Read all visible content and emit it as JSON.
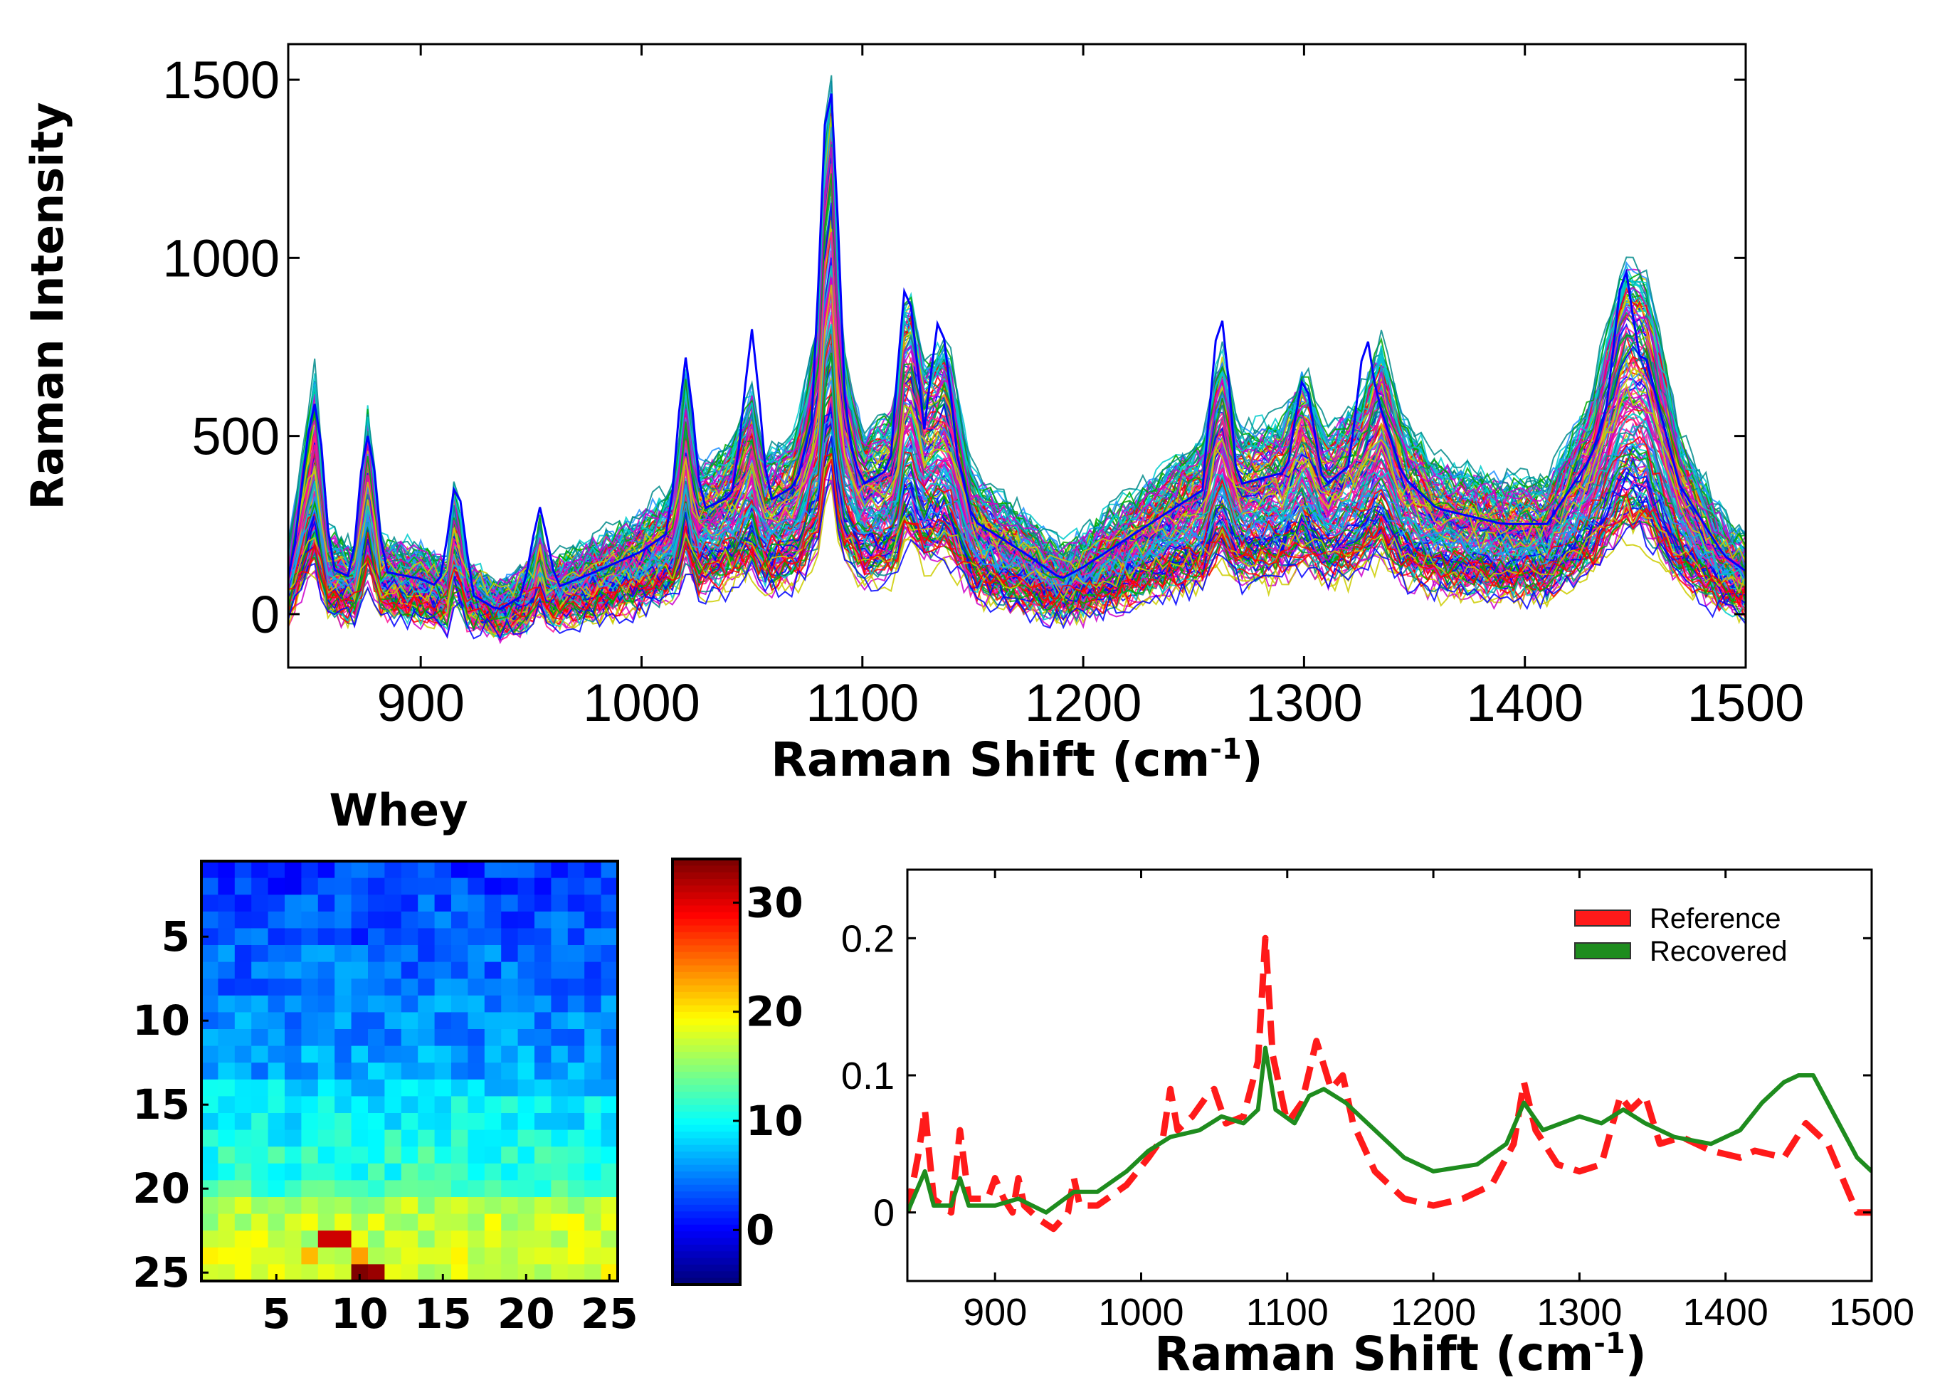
{
  "chart_data": [
    {
      "type": "line",
      "xlabel": "Raman Shift (cm-1)",
      "ylabel": "Raman Intensity",
      "xlim": [
        840,
        1500
      ],
      "ylim": [
        -150,
        1600
      ],
      "xticks": [
        900,
        1000,
        1100,
        1200,
        1300,
        1400,
        1500
      ],
      "yticks": [
        0,
        500,
        1000,
        1500
      ],
      "grid": false,
      "series_count_estimate": 150,
      "series_colors": [
        "#0000ff",
        "#ff0000",
        "#00aa00",
        "#00cccc",
        "#cc00cc",
        "#cccc00",
        "#1e90ff",
        "#ff1493",
        "#008b8b"
      ],
      "mean_spectrum": {
        "x": [
          840,
          852,
          858,
          870,
          876,
          882,
          900,
          912,
          916,
          920,
          935,
          950,
          954,
          958,
          980,
          1000,
          1015,
          1020,
          1025,
          1040,
          1050,
          1055,
          1070,
          1080,
          1085,
          1090,
          1100,
          1115,
          1120,
          1128,
          1138,
          1150,
          1175,
          1190,
          1200,
          1230,
          1255,
          1262,
          1270,
          1290,
          1300,
          1310,
          1325,
          1335,
          1345,
          1360,
          1390,
          1410,
          1430,
          1445,
          1455,
          1470,
          1490,
          1500
        ],
        "y": [
          90,
          450,
          120,
          90,
          380,
          110,
          90,
          60,
          260,
          60,
          10,
          60,
          150,
          60,
          110,
          160,
          220,
          450,
          260,
          300,
          420,
          280,
          330,
          560,
          1180,
          520,
          330,
          380,
          650,
          470,
          520,
          240,
          150,
          90,
          120,
          230,
          320,
          520,
          330,
          360,
          460,
          330,
          400,
          520,
          350,
          270,
          230,
          230,
          400,
          680,
          650,
          330,
          150,
          110
        ]
      },
      "peak_maxima": {
        "x": [
          852,
          876,
          916,
          954,
          1020,
          1050,
          1085,
          1120,
          1135,
          1262,
          1300,
          1328,
          1445
        ],
        "y": [
          590,
          500,
          370,
          300,
          720,
          800,
          1520,
          950,
          860,
          870,
          680,
          810,
          1000
        ]
      }
    },
    {
      "type": "heatmap",
      "title": "Whey",
      "rows": 25,
      "cols": 25,
      "yticks": [
        5,
        10,
        15,
        20,
        25
      ],
      "xticks": [
        5,
        10,
        15,
        20,
        25
      ],
      "colorbar": {
        "range": [
          -5,
          34
        ],
        "ticks": [
          0,
          10,
          20,
          30
        ],
        "colormap": "jet"
      },
      "row_means": [
        2,
        2,
        3,
        3,
        3,
        4,
        4,
        4,
        5,
        5,
        5,
        6,
        6,
        8,
        9,
        9,
        10,
        11,
        11,
        12,
        16,
        17,
        17,
        18,
        18
      ],
      "hot_cells": [
        {
          "row": 23,
          "col": 8,
          "value": 31
        },
        {
          "row": 23,
          "col": 9,
          "value": 31
        },
        {
          "row": 25,
          "col": 10,
          "value": 34
        },
        {
          "row": 25,
          "col": 11,
          "value": 33
        },
        {
          "row": 24,
          "col": 7,
          "value": 22
        },
        {
          "row": 24,
          "col": 10,
          "value": 23
        }
      ]
    },
    {
      "type": "line",
      "xlabel": "Raman Shift (cm-1)",
      "xlim": [
        840,
        1500
      ],
      "ylim": [
        -0.05,
        0.25
      ],
      "xticks": [
        900,
        1000,
        1100,
        1200,
        1300,
        1400,
        1500
      ],
      "yticks": [
        0,
        0.1,
        0.2
      ],
      "ytick_labels": [
        "0",
        "0.1",
        "0.2"
      ],
      "legend": "top-right",
      "series": [
        {
          "name": "Reference",
          "color": "#ff1a1a",
          "dash": "dashed",
          "x": [
            840,
            848,
            852,
            858,
            870,
            876,
            882,
            895,
            900,
            906,
            912,
            916,
            920,
            930,
            940,
            950,
            954,
            958,
            970,
            990,
            1005,
            1015,
            1020,
            1025,
            1035,
            1045,
            1050,
            1058,
            1070,
            1080,
            1085,
            1090,
            1100,
            1110,
            1120,
            1130,
            1138,
            1145,
            1160,
            1180,
            1200,
            1220,
            1240,
            1255,
            1262,
            1270,
            1285,
            1300,
            1315,
            1328,
            1335,
            1345,
            1355,
            1370,
            1390,
            1410,
            1420,
            1440,
            1455,
            1470,
            1490,
            1500
          ],
          "y": [
            0.0,
            0.045,
            0.075,
            0.01,
            0.0,
            0.06,
            0.01,
            0.01,
            0.025,
            0.01,
            0.0,
            0.025,
            0.005,
            -0.005,
            -0.012,
            0.0,
            0.025,
            0.005,
            0.005,
            0.02,
            0.04,
            0.055,
            0.09,
            0.06,
            0.07,
            0.085,
            0.09,
            0.065,
            0.07,
            0.11,
            0.2,
            0.115,
            0.065,
            0.08,
            0.125,
            0.09,
            0.1,
            0.065,
            0.03,
            0.01,
            0.005,
            0.01,
            0.02,
            0.05,
            0.095,
            0.06,
            0.035,
            0.03,
            0.035,
            0.085,
            0.075,
            0.085,
            0.05,
            0.055,
            0.045,
            0.04,
            0.045,
            0.04,
            0.065,
            0.05,
            0.0,
            0.0
          ]
        },
        {
          "name": "Recovered",
          "color": "#1e8c1e",
          "dash": "solid",
          "x": [
            840,
            852,
            858,
            870,
            876,
            882,
            900,
            916,
            935,
            954,
            970,
            990,
            1005,
            1020,
            1040,
            1055,
            1070,
            1080,
            1085,
            1092,
            1105,
            1115,
            1125,
            1140,
            1160,
            1180,
            1200,
            1230,
            1250,
            1262,
            1275,
            1300,
            1315,
            1330,
            1345,
            1365,
            1390,
            1410,
            1425,
            1440,
            1450,
            1460,
            1475,
            1490,
            1500
          ],
          "y": [
            0.0,
            0.03,
            0.005,
            0.005,
            0.025,
            0.005,
            0.005,
            0.01,
            0.0,
            0.015,
            0.015,
            0.03,
            0.045,
            0.055,
            0.06,
            0.07,
            0.065,
            0.075,
            0.12,
            0.075,
            0.065,
            0.085,
            0.09,
            0.08,
            0.06,
            0.04,
            0.03,
            0.035,
            0.05,
            0.08,
            0.06,
            0.07,
            0.065,
            0.075,
            0.065,
            0.055,
            0.05,
            0.06,
            0.08,
            0.095,
            0.1,
            0.1,
            0.07,
            0.04,
            0.03
          ]
        }
      ]
    }
  ]
}
